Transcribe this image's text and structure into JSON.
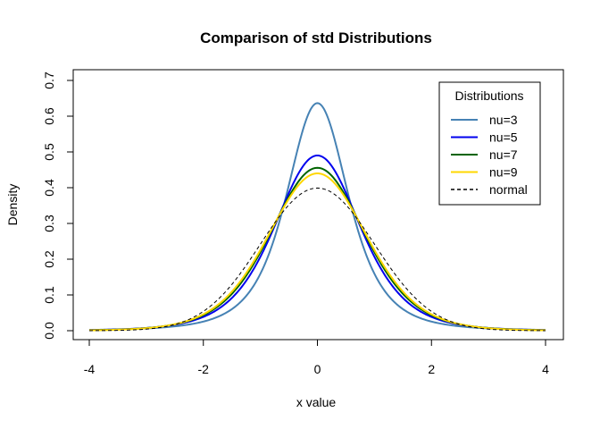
{
  "chart_data": {
    "type": "line",
    "title": "Comparison of std Distributions",
    "xlabel": "x value",
    "ylabel": "Density",
    "xlim": [
      -4,
      4
    ],
    "ylim": [
      0,
      0.7
    ],
    "x_ticks": [
      -4,
      -2,
      0,
      2,
      4
    ],
    "x_tick_labels": [
      "-4",
      "-2",
      "0",
      "2",
      "4"
    ],
    "y_ticks": [
      0.0,
      0.1,
      0.2,
      0.3,
      0.4,
      0.5,
      0.6,
      0.7
    ],
    "y_tick_labels": [
      "0.0",
      "0.1",
      "0.2",
      "0.3",
      "0.4",
      "0.5",
      "0.6",
      "0.7"
    ],
    "grid": false,
    "legend": {
      "title": "Distributions",
      "position": "top-right",
      "entries": [
        "nu=3",
        "nu=5",
        "nu=7",
        "nu=9",
        "normal"
      ]
    },
    "series": [
      {
        "name": "nu=3",
        "color": "#4682B4",
        "dash": "solid",
        "nu": 3
      },
      {
        "name": "nu=5",
        "color": "#0000EE",
        "dash": "solid",
        "nu": 5
      },
      {
        "name": "nu=7",
        "color": "#006400",
        "dash": "solid",
        "nu": 7
      },
      {
        "name": "nu=9",
        "color": "#FFD700",
        "dash": "solid",
        "nu": 9
      },
      {
        "name": "normal",
        "color": "#000000",
        "dash": "dashed",
        "nu": null
      }
    ]
  }
}
